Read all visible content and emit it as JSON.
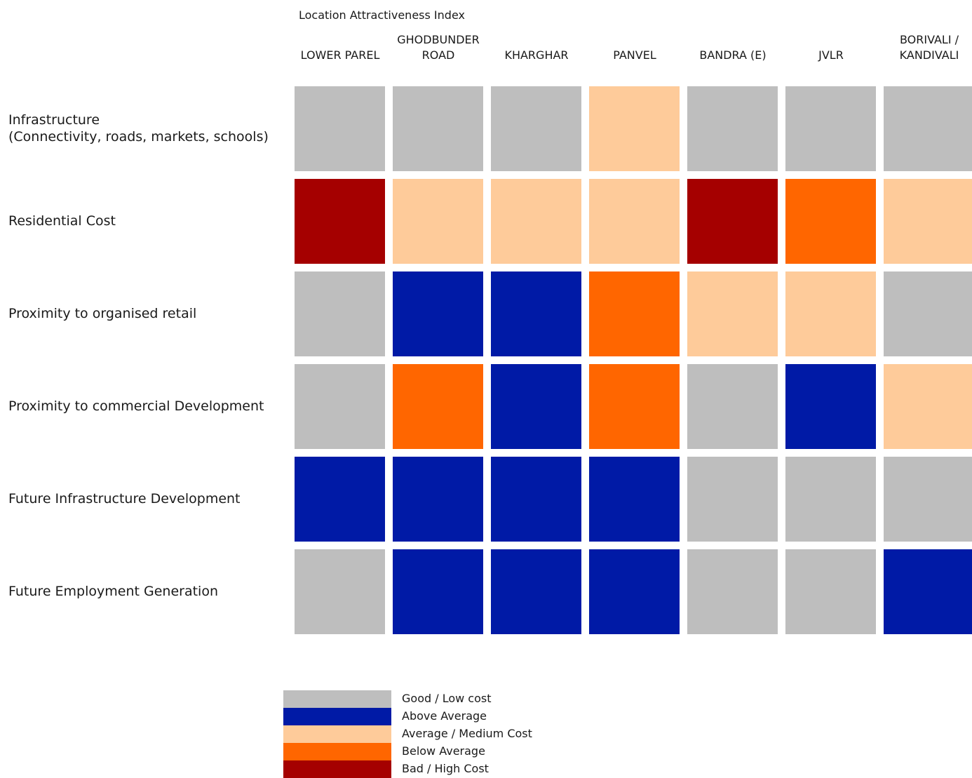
{
  "chart_data": {
    "type": "heatmap",
    "title": "Location Attractiveness Index",
    "columns": [
      "LOWER PAREL",
      "GHODBUNDER\nROAD",
      "KHARGHAR",
      "PANVEL",
      "BANDRA (E)",
      "JVLR",
      "BORIVALI /\nKANDIVALI"
    ],
    "rows": [
      "Infrastructure\n(Connectivity, roads, markets, schools)",
      "Residential Cost",
      "Proximity to organised  retail",
      "Proximity to commercial Development",
      "Future Infrastructure Development",
      "Future Employment Generation"
    ],
    "legend": [
      {
        "label": "Good / Low cost",
        "color": "#bebebe"
      },
      {
        "label": "Above Average",
        "color": "#001aa6"
      },
      {
        "label": "Average / Medium Cost",
        "color": "#fecb9a"
      },
      {
        "label": "Below Average",
        "color": "#ff6600"
      },
      {
        "label": "Bad / High Cost",
        "color": "#a50000"
      }
    ],
    "values": [
      [
        0,
        0,
        0,
        2,
        0,
        0,
        0
      ],
      [
        4,
        2,
        2,
        2,
        4,
        3,
        2
      ],
      [
        0,
        1,
        1,
        3,
        2,
        2,
        0
      ],
      [
        0,
        3,
        1,
        3,
        0,
        1,
        2
      ],
      [
        1,
        1,
        1,
        1,
        0,
        0,
        0
      ],
      [
        0,
        1,
        1,
        1,
        0,
        0,
        1
      ]
    ]
  }
}
